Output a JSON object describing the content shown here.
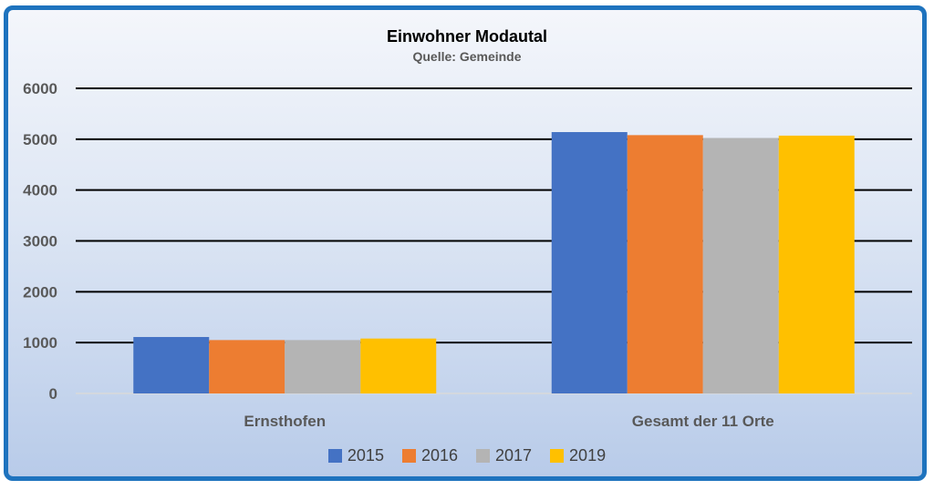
{
  "chart_data": {
    "type": "bar",
    "title": "Einwohner Modautal",
    "subtitle": "Quelle: Gemeinde",
    "categories": [
      "Ernsthofen",
      "Gesamt der 11 Orte"
    ],
    "series": [
      {
        "name": "2015",
        "color": "#4472c4",
        "values": [
          1110,
          5140
        ]
      },
      {
        "name": "2016",
        "color": "#ed7d31",
        "values": [
          1050,
          5080
        ]
      },
      {
        "name": "2017",
        "color": "#b4b4b4",
        "values": [
          1050,
          5020
        ]
      },
      {
        "name": "2019",
        "color": "#ffc000",
        "values": [
          1080,
          5070
        ]
      }
    ],
    "ylim": [
      0,
      6000
    ],
    "yticks": [
      "0",
      "1000",
      "2000",
      "3000",
      "4000",
      "5000",
      "6000"
    ],
    "grid": true,
    "legend_position": "bottom"
  }
}
